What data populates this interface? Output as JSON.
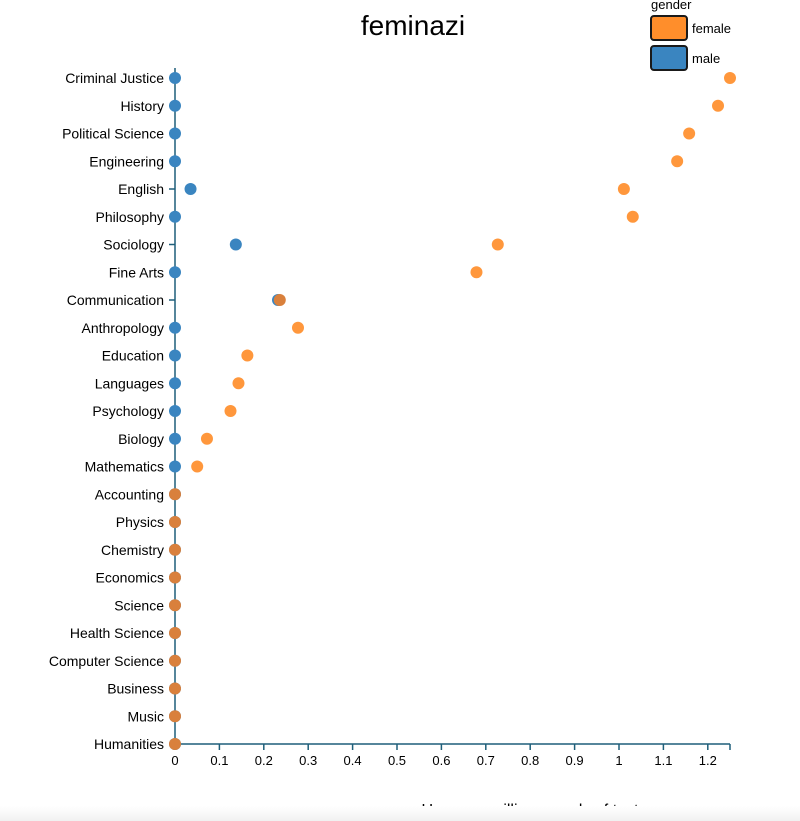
{
  "chart_data": {
    "type": "scatter",
    "title": "feminazi",
    "xlabel": "Uses per millions words of text",
    "ylabel": "",
    "xlim": [
      0,
      1.25
    ],
    "x_ticks": [
      0,
      0.1,
      0.2,
      0.3,
      0.4,
      0.5,
      0.6,
      0.7,
      0.8,
      0.9,
      1,
      1.1,
      1.2
    ],
    "x_tick_labels": [
      "0",
      "0.1",
      "0.2",
      "0.3",
      "0.4",
      "0.5",
      "0.6",
      "0.7",
      "0.8",
      "0.9",
      "1",
      "1.1",
      "1.2"
    ],
    "categories": [
      "Criminal Justice",
      "History",
      "Political Science",
      "Engineering",
      "English",
      "Philosophy",
      "Sociology",
      "Fine Arts",
      "Communication",
      "Anthropology",
      "Education",
      "Languages",
      "Psychology",
      "Biology",
      "Mathematics",
      "Accounting",
      "Physics",
      "Chemistry",
      "Economics",
      "Science",
      "Health Science",
      "Computer Science",
      "Business",
      "Music",
      "Humanities"
    ],
    "legend_title": "gender",
    "legend_position": "top-right",
    "series": [
      {
        "name": "male",
        "color": "#3a85c0",
        "values": [
          0,
          0,
          0,
          0,
          0.035,
          0,
          0.137,
          0,
          0.232,
          0,
          0,
          0,
          0,
          0,
          0,
          0,
          0,
          0,
          0,
          0,
          0,
          0,
          0,
          0,
          0
        ]
      },
      {
        "name": "female",
        "color": "#ff8e2b",
        "values": [
          1.25,
          1.223,
          1.158,
          1.131,
          1.011,
          1.031,
          0.727,
          0.679,
          0.236,
          0.277,
          0.163,
          0.143,
          0.125,
          0.072,
          0.05,
          0,
          0,
          0,
          0,
          0,
          0,
          0,
          0,
          0,
          0
        ]
      }
    ],
    "overlap_color": "#d9803c"
  }
}
